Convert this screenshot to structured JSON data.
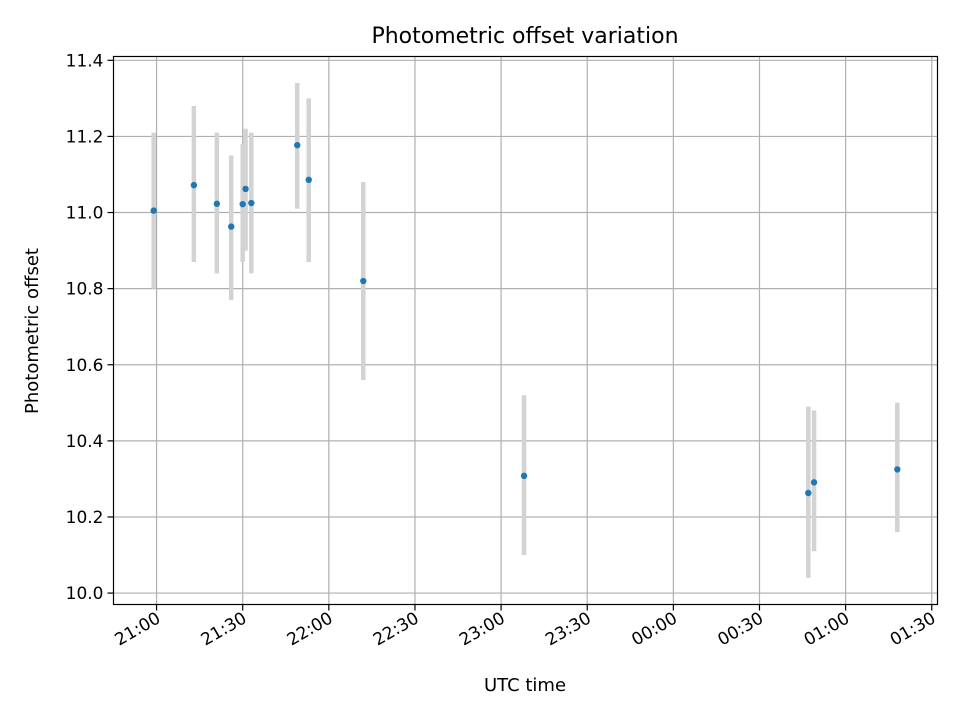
{
  "chart_data": {
    "type": "scatter",
    "title": "Photometric offset variation",
    "xlabel": "UTC time",
    "ylabel": "Photometric offset",
    "x_axis_kind": "time (HH:MM UTC), crosses midnight",
    "xlim": [
      "20:45",
      "01:32"
    ],
    "ylim": [
      9.97,
      11.41
    ],
    "yticks": [
      "10.0",
      "10.2",
      "10.4",
      "10.6",
      "10.8",
      "11.0",
      "11.2",
      "11.4"
    ],
    "xticks": [
      "21:00",
      "21:30",
      "22:00",
      "22:30",
      "23:00",
      "23:30",
      "00:00",
      "00:30",
      "01:00",
      "01:30"
    ],
    "grid": true,
    "marker_color": "#1f77b4",
    "errorbar_color": "#d3d3d3",
    "points": [
      {
        "x": "20:59",
        "y": 11.005,
        "ylow": 10.8,
        "yhigh": 11.21
      },
      {
        "x": "21:13",
        "y": 11.072,
        "ylow": 10.87,
        "yhigh": 11.28
      },
      {
        "x": "21:21",
        "y": 11.023,
        "ylow": 10.84,
        "yhigh": 11.21
      },
      {
        "x": "21:26",
        "y": 10.963,
        "ylow": 10.77,
        "yhigh": 11.15
      },
      {
        "x": "21:30",
        "y": 11.022,
        "ylow": 10.87,
        "yhigh": 11.18
      },
      {
        "x": "21:31",
        "y": 11.062,
        "ylow": 10.9,
        "yhigh": 11.22
      },
      {
        "x": "21:33",
        "y": 11.025,
        "ylow": 10.84,
        "yhigh": 11.21
      },
      {
        "x": "21:49",
        "y": 11.177,
        "ylow": 11.01,
        "yhigh": 11.34
      },
      {
        "x": "21:53",
        "y": 11.086,
        "ylow": 10.87,
        "yhigh": 11.3
      },
      {
        "x": "22:12",
        "y": 10.82,
        "ylow": 10.56,
        "yhigh": 11.08
      },
      {
        "x": "23:08",
        "y": 10.308,
        "ylow": 10.1,
        "yhigh": 10.52
      },
      {
        "x": "00:47",
        "y": 10.263,
        "ylow": 10.04,
        "yhigh": 10.49
      },
      {
        "x": "00:49",
        "y": 10.291,
        "ylow": 10.11,
        "yhigh": 10.48
      },
      {
        "x": "01:18",
        "y": 10.325,
        "ylow": 10.16,
        "yhigh": 10.5
      }
    ]
  }
}
